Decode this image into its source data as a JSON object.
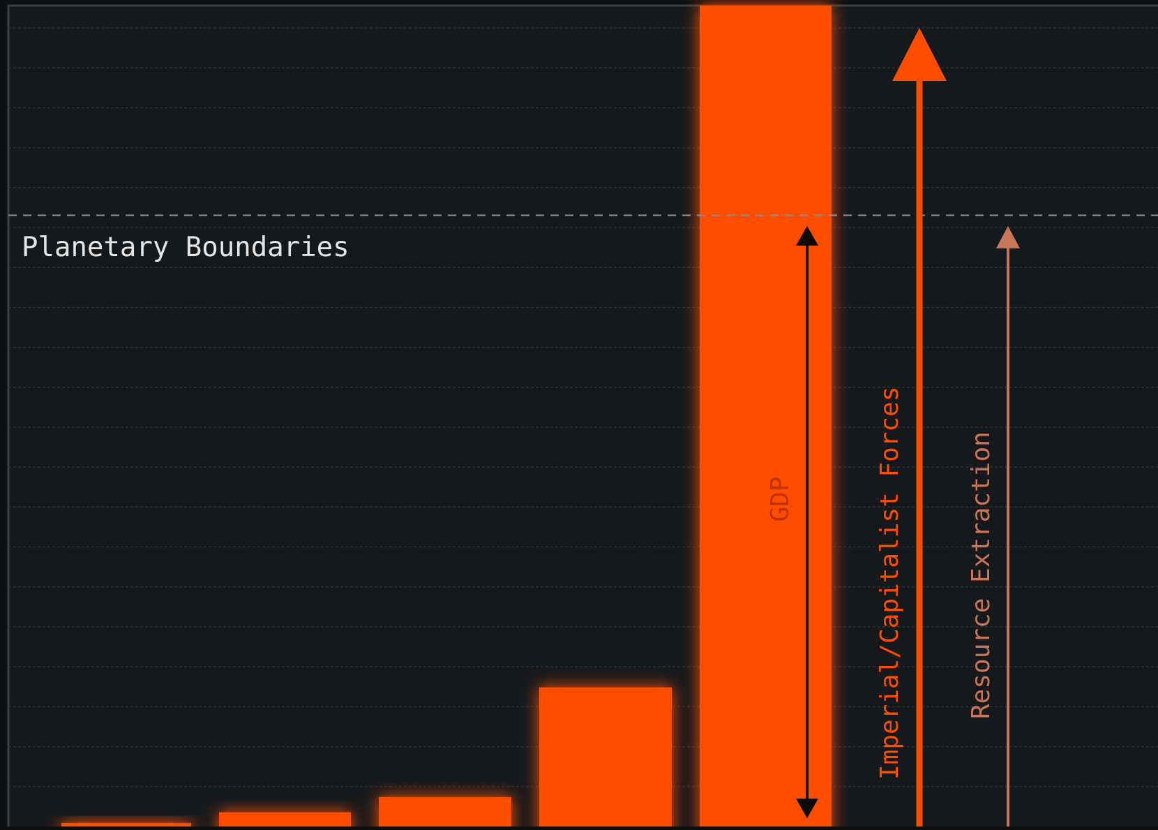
{
  "chart_data": {
    "type": "bar",
    "title": "",
    "xlabel": "",
    "ylabel": "",
    "categories": [
      "",
      "",
      "",
      "",
      ""
    ],
    "values": [
      0.4,
      1.6,
      3.3,
      15.6,
      92
    ],
    "ylim": [
      0,
      92
    ],
    "grid": true,
    "reference_line": {
      "label": "Planetary Boundaries",
      "value": 68.5
    },
    "annotations": [
      {
        "label": "GDP",
        "kind": "double-arrow",
        "from": 0,
        "to": 67.3
      },
      {
        "label": "Imperial/Capitalist Forces",
        "kind": "arrow-up",
        "from": 0,
        "to": 89.5
      },
      {
        "label": "Resource Extraction",
        "kind": "arrow-up",
        "from": 0,
        "to": 67.3
      }
    ]
  },
  "colors": {
    "background": "#16191c",
    "frame": "#3a3f44",
    "grid": "#2c3136",
    "bar": "#ff4d00",
    "bar_glow": "#ff3c00",
    "reference_line": "#8a8f94",
    "reference_text": "#e6e6e6",
    "gdp_arrow": "#0b0b0b",
    "gdp_text": "#c23200",
    "forces": "#ff4d00",
    "extraction": "#c9755a"
  }
}
